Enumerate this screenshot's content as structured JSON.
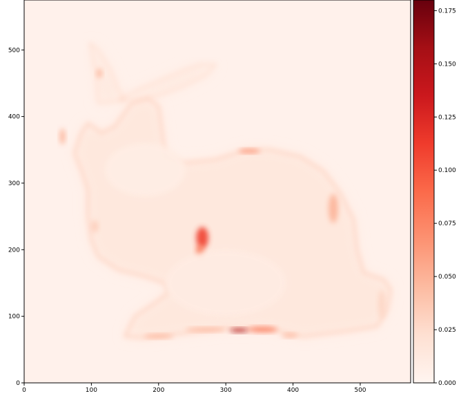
{
  "chart_data": {
    "type": "heatmap",
    "title": "",
    "xlabel": "",
    "ylabel": "",
    "colormap": "Reds",
    "colormap_stops": [
      "#fff5f0",
      "#fee0d2",
      "#fcbba1",
      "#fc9272",
      "#fb6a4a",
      "#ef3b2c",
      "#cb181d",
      "#a50f15",
      "#67000d"
    ],
    "xlim": [
      0,
      575
    ],
    "ylim": [
      0,
      575
    ],
    "x_ticks": [
      0,
      100,
      200,
      300,
      400,
      500
    ],
    "x_tick_labels": [
      "0",
      "100",
      "200",
      "300",
      "400",
      "500"
    ],
    "y_ticks": [
      0,
      100,
      200,
      300,
      400,
      500
    ],
    "y_tick_labels": [
      "0",
      "100",
      "200",
      "300",
      "400",
      "500"
    ],
    "colorbar": {
      "range": [
        0.0,
        0.18
      ],
      "ticks": [
        0.0,
        0.025,
        0.05,
        0.075,
        0.1,
        0.125,
        0.15,
        0.175
      ],
      "tick_labels": [
        "0.000",
        "0.025",
        "0.050",
        "0.075",
        "0.100",
        "0.125",
        "0.150",
        "0.175"
      ]
    },
    "subject": "bunny silhouette density map",
    "background_value": 0.004,
    "silhouette": [
      [
        95,
        390
      ],
      [
        115,
        375
      ],
      [
        135,
        385
      ],
      [
        160,
        420
      ],
      [
        185,
        427
      ],
      [
        200,
        415
      ],
      [
        210,
        340
      ],
      [
        235,
        330
      ],
      [
        285,
        335
      ],
      [
        330,
        350
      ],
      [
        365,
        350
      ],
      [
        410,
        340
      ],
      [
        445,
        318
      ],
      [
        470,
        285
      ],
      [
        490,
        245
      ],
      [
        495,
        200
      ],
      [
        505,
        165
      ],
      [
        535,
        155
      ],
      [
        545,
        140
      ],
      [
        540,
        110
      ],
      [
        525,
        85
      ],
      [
        480,
        78
      ],
      [
        415,
        70
      ],
      [
        360,
        83
      ],
      [
        300,
        82
      ],
      [
        240,
        75
      ],
      [
        180,
        68
      ],
      [
        150,
        70
      ],
      [
        165,
        100
      ],
      [
        195,
        120
      ],
      [
        215,
        135
      ],
      [
        210,
        150
      ],
      [
        180,
        160
      ],
      [
        140,
        170
      ],
      [
        110,
        190
      ],
      [
        100,
        215
      ],
      [
        95,
        250
      ],
      [
        95,
        290
      ],
      [
        85,
        320
      ],
      [
        75,
        345
      ],
      [
        85,
        375
      ]
    ],
    "ears": [
      [
        [
          110,
          420
        ],
        [
          108,
          455
        ],
        [
          102,
          490
        ],
        [
          98,
          510
        ],
        [
          110,
          500
        ],
        [
          128,
          470
        ],
        [
          140,
          440
        ],
        [
          150,
          425
        ]
      ],
      [
        [
          140,
          425
        ],
        [
          170,
          440
        ],
        [
          205,
          455
        ],
        [
          235,
          468
        ],
        [
          262,
          478
        ],
        [
          285,
          478
        ],
        [
          270,
          462
        ],
        [
          235,
          445
        ],
        [
          200,
          432
        ],
        [
          165,
          425
        ]
      ]
    ],
    "hotspots": [
      {
        "x": 265,
        "y": 218,
        "sx": 9,
        "sy": 16,
        "value": 0.11
      },
      {
        "x": 262,
        "y": 198,
        "sx": 6,
        "sy": 10,
        "value": 0.08
      },
      {
        "x": 320,
        "y": 79,
        "sx": 14,
        "sy": 3,
        "value": 0.15
      },
      {
        "x": 355,
        "y": 80,
        "sx": 22,
        "sy": 4,
        "value": 0.08
      },
      {
        "x": 270,
        "y": 80,
        "sx": 30,
        "sy": 3,
        "value": 0.05
      },
      {
        "x": 200,
        "y": 70,
        "sx": 22,
        "sy": 3,
        "value": 0.05
      },
      {
        "x": 395,
        "y": 71,
        "sx": 12,
        "sy": 3,
        "value": 0.05
      },
      {
        "x": 335,
        "y": 348,
        "sx": 16,
        "sy": 3,
        "value": 0.07
      },
      {
        "x": 460,
        "y": 262,
        "sx": 7,
        "sy": 22,
        "value": 0.05
      },
      {
        "x": 112,
        "y": 465,
        "sx": 4,
        "sy": 7,
        "value": 0.05
      },
      {
        "x": 57,
        "y": 370,
        "sx": 4,
        "sy": 12,
        "value": 0.05
      },
      {
        "x": 105,
        "y": 235,
        "sx": 5,
        "sy": 9,
        "value": 0.035
      },
      {
        "x": 532,
        "y": 118,
        "sx": 5,
        "sy": 22,
        "value": 0.03
      },
      {
        "x": 300,
        "y": 150,
        "sx": 90,
        "sy": 50,
        "value": 0.01
      },
      {
        "x": 180,
        "y": 320,
        "sx": 60,
        "sy": 40,
        "value": 0.008
      }
    ]
  }
}
